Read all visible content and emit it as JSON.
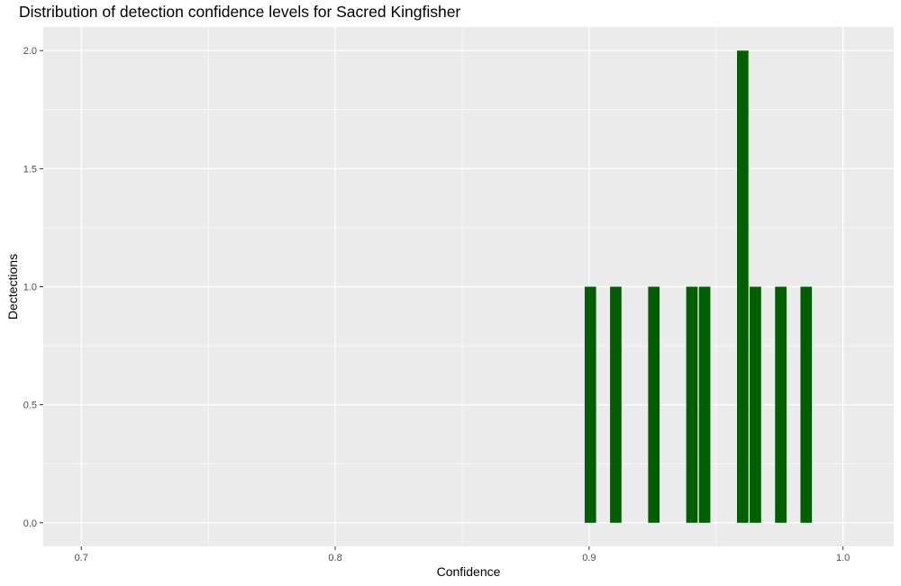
{
  "chart_data": {
    "type": "bar",
    "title": "Distribution of detection confidence levels for Sacred Kingfisher",
    "xlabel": "Confidence",
    "ylabel": "Dectections",
    "xlim": [
      0.685,
      1.02
    ],
    "ylim": [
      -0.1,
      2.1
    ],
    "x_ticks": [
      0.7,
      0.8,
      0.9,
      1.0
    ],
    "x_tick_labels": [
      "0.7",
      "0.8",
      "0.9",
      "1.0"
    ],
    "y_ticks": [
      0,
      0.5,
      1,
      1.5,
      2
    ],
    "y_tick_labels": [
      "0.0",
      "0.5",
      "1.0",
      "1.5",
      "2.0"
    ],
    "bar_width": 0.0045,
    "x": [
      0.9005,
      0.9105,
      0.9255,
      0.9405,
      0.9455,
      0.9605,
      0.9655,
      0.9755,
      0.9855
    ],
    "values": [
      1,
      1,
      1,
      1,
      1,
      2,
      1,
      1,
      1
    ],
    "bar_color": "#005f00",
    "panel_background": "#ebebeb",
    "grid_color": "#ffffff",
    "grid": true,
    "legend": "none"
  }
}
